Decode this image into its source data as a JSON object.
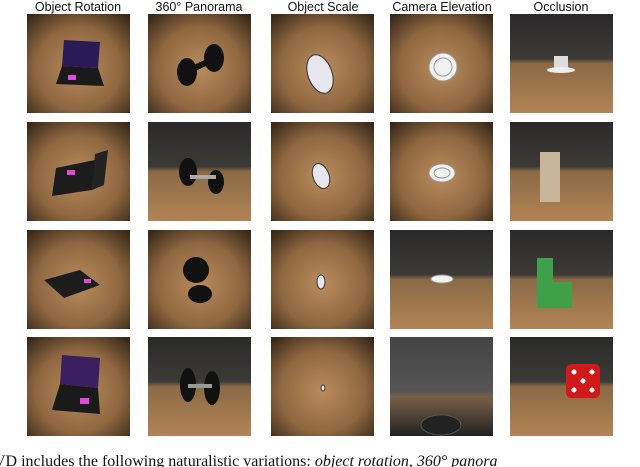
{
  "columns": [
    "Object Rotation",
    "360° Panorama",
    "Object Scale",
    "Camera Elevation",
    "Occlusion"
  ],
  "caption": [
    "VD includes the following naturalistic variations: ",
    "object rotation",
    ", ",
    "360° panora"
  ]
}
